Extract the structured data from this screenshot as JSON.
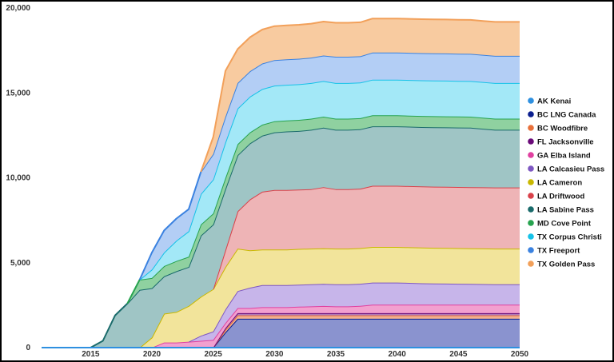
{
  "chart_data": {
    "type": "area",
    "stacked": true,
    "grid": false,
    "legend_position": "right",
    "title": "",
    "xlabel": "",
    "ylabel": "",
    "xlim": [
      2011,
      2050
    ],
    "ylim": [
      0,
      20000
    ],
    "x_ticks": [
      "2015",
      "2020",
      "2025",
      "2030",
      "2035",
      "2040",
      "2045",
      "2050"
    ],
    "y_ticks": [
      "0",
      "5,000",
      "10,000",
      "15,000",
      "20,000"
    ],
    "x": [
      2011,
      2012,
      2013,
      2014,
      2015,
      2016,
      2017,
      2018,
      2019,
      2020,
      2021,
      2022,
      2023,
      2024,
      2025,
      2026,
      2027,
      2028,
      2029,
      2030,
      2031,
      2032,
      2033,
      2034,
      2035,
      2036,
      2037,
      2038,
      2039,
      2040,
      2041,
      2042,
      2043,
      2044,
      2045,
      2046,
      2047,
      2048,
      2049,
      2050
    ],
    "series": [
      {
        "name": "AK Kenai",
        "color": "#2e90e0",
        "fill": "#3949ab",
        "values": [
          0,
          0,
          0,
          0,
          0,
          0,
          0,
          0,
          0,
          0,
          0,
          0,
          0,
          0,
          0,
          0,
          0,
          0,
          0,
          0,
          0,
          0,
          0,
          0,
          0,
          0,
          0,
          0,
          0,
          0,
          0,
          0,
          0,
          0,
          0,
          0,
          0,
          0,
          0,
          0
        ]
      },
      {
        "name": "BC LNG Canada",
        "color": "#0b1f8f",
        "fill": "#8a93cf",
        "values": [
          0,
          0,
          0,
          0,
          0,
          0,
          0,
          0,
          0,
          0,
          0,
          0,
          0,
          0,
          0,
          900,
          1700,
          1700,
          1700,
          1700,
          1700,
          1700,
          1700,
          1700,
          1700,
          1700,
          1700,
          1700,
          1700,
          1700,
          1700,
          1700,
          1700,
          1700,
          1700,
          1700,
          1700,
          1700,
          1700,
          1700
        ]
      },
      {
        "name": "BC Woodfibre",
        "color": "#e8703a",
        "fill": "#f2b090",
        "values": [
          0,
          0,
          0,
          0,
          0,
          0,
          0,
          0,
          0,
          0,
          0,
          0,
          0,
          0,
          0,
          150,
          200,
          200,
          200,
          200,
          200,
          200,
          200,
          200,
          200,
          200,
          200,
          200,
          200,
          200,
          200,
          200,
          200,
          200,
          200,
          200,
          200,
          200,
          200,
          200
        ]
      },
      {
        "name": "FL Jacksonville",
        "color": "#6a0a78",
        "fill": "#b07ab8",
        "values": [
          0,
          0,
          0,
          0,
          0,
          0,
          0,
          0,
          0,
          0,
          0,
          0,
          0,
          0,
          0,
          100,
          130,
          130,
          130,
          130,
          130,
          130,
          130,
          130,
          130,
          130,
          130,
          130,
          130,
          130,
          130,
          130,
          130,
          130,
          130,
          130,
          130,
          130,
          130,
          130
        ]
      },
      {
        "name": "GA Elba Island",
        "color": "#e040a0",
        "fill": "#f2a0cf",
        "values": [
          0,
          0,
          0,
          0,
          0,
          0,
          0,
          0,
          0,
          0,
          300,
          300,
          350,
          400,
          450,
          300,
          300,
          300,
          350,
          350,
          350,
          380,
          400,
          420,
          400,
          400,
          430,
          500,
          500,
          500,
          500,
          500,
          500,
          500,
          500,
          500,
          500,
          500,
          500,
          500
        ]
      },
      {
        "name": "LA Calcasieu Pass",
        "color": "#7e57c2",
        "fill": "#c7b5ea",
        "values": [
          0,
          0,
          0,
          0,
          0,
          0,
          0,
          0,
          0,
          0,
          0,
          0,
          0,
          300,
          500,
          800,
          1000,
          1200,
          1300,
          1300,
          1300,
          1300,
          1300,
          1300,
          1300,
          1300,
          1300,
          1300,
          1300,
          1300,
          1280,
          1260,
          1250,
          1240,
          1230,
          1220,
          1210,
          1200,
          1200,
          1200
        ]
      },
      {
        "name": "LA Cameron",
        "color": "#c9b800",
        "fill": "#f2e49b",
        "values": [
          0,
          0,
          0,
          0,
          0,
          0,
          0,
          0,
          0,
          600,
          1700,
          1800,
          2100,
          2300,
          2500,
          2500,
          2500,
          2200,
          2100,
          2100,
          2100,
          2100,
          2100,
          2100,
          2100,
          2100,
          2100,
          2100,
          2100,
          2100,
          2100,
          2100,
          2100,
          2100,
          2100,
          2100,
          2100,
          2100,
          2100,
          2100
        ]
      },
      {
        "name": "LA Driftwood",
        "color": "#d9414a",
        "fill": "#eeb4b6",
        "values": [
          0,
          0,
          0,
          0,
          0,
          0,
          0,
          0,
          0,
          0,
          0,
          0,
          0,
          0,
          0,
          1000,
          2200,
          3000,
          3400,
          3500,
          3500,
          3500,
          3500,
          3600,
          3500,
          3500,
          3500,
          3600,
          3600,
          3600,
          3600,
          3600,
          3600,
          3600,
          3600,
          3600,
          3600,
          3600,
          3600,
          3600
        ]
      },
      {
        "name": "LA Sabine Pass",
        "color": "#1a6b6b",
        "fill": "#9fc5c5",
        "values": [
          0,
          0,
          0,
          0,
          0,
          400,
          1900,
          2600,
          3400,
          2900,
          2200,
          2400,
          2300,
          3600,
          3800,
          3600,
          3300,
          3300,
          3300,
          3400,
          3450,
          3450,
          3500,
          3500,
          3500,
          3500,
          3500,
          3500,
          3500,
          3500,
          3500,
          3500,
          3500,
          3500,
          3500,
          3500,
          3450,
          3400,
          3400,
          3400
        ]
      },
      {
        "name": "MD Cove Point",
        "color": "#27a34f",
        "fill": "#8fd1a0",
        "values": [
          0,
          0,
          0,
          0,
          0,
          0,
          0,
          0,
          600,
          600,
          600,
          600,
          600,
          650,
          650,
          650,
          650,
          650,
          650,
          650,
          650,
          650,
          650,
          650,
          650,
          650,
          650,
          650,
          650,
          650,
          650,
          650,
          650,
          650,
          650,
          650,
          650,
          650,
          650,
          650
        ]
      },
      {
        "name": "TX Corpus Christi",
        "color": "#16c2e8",
        "fill": "#a3e8f7",
        "values": [
          0,
          0,
          0,
          0,
          0,
          0,
          0,
          0,
          0,
          500,
          800,
          1200,
          1500,
          1800,
          2000,
          2100,
          2100,
          2100,
          2100,
          2100,
          2100,
          2100,
          2100,
          2100,
          2100,
          2100,
          2100,
          2100,
          2100,
          2100,
          2100,
          2100,
          2100,
          2100,
          2100,
          2100,
          2100,
          2100,
          2100,
          2100
        ]
      },
      {
        "name": "TX Freeport",
        "color": "#3b82e0",
        "fill": "#b3cef5",
        "values": [
          0,
          0,
          0,
          0,
          0,
          0,
          0,
          0,
          0,
          1000,
          1300,
          1300,
          1300,
          1300,
          1500,
          1500,
          1500,
          1500,
          1500,
          1500,
          1500,
          1500,
          1500,
          1500,
          1550,
          1550,
          1550,
          1600,
          1600,
          1600,
          1600,
          1600,
          1600,
          1600,
          1600,
          1600,
          1600,
          1600,
          1600,
          1600
        ]
      },
      {
        "name": "TX Golden Pass",
        "color": "#f2a05a",
        "fill": "#f8cba0",
        "values": [
          0,
          0,
          0,
          0,
          0,
          0,
          0,
          0,
          0,
          0,
          0,
          0,
          0,
          0,
          1000,
          2700,
          2000,
          2000,
          2000,
          2000,
          2000,
          2000,
          2000,
          2000,
          2000,
          2000,
          2000,
          2000,
          2000,
          2000,
          2000,
          2000,
          2000,
          2000,
          2000,
          2000,
          2000,
          2000,
          2000,
          2000
        ]
      }
    ]
  }
}
